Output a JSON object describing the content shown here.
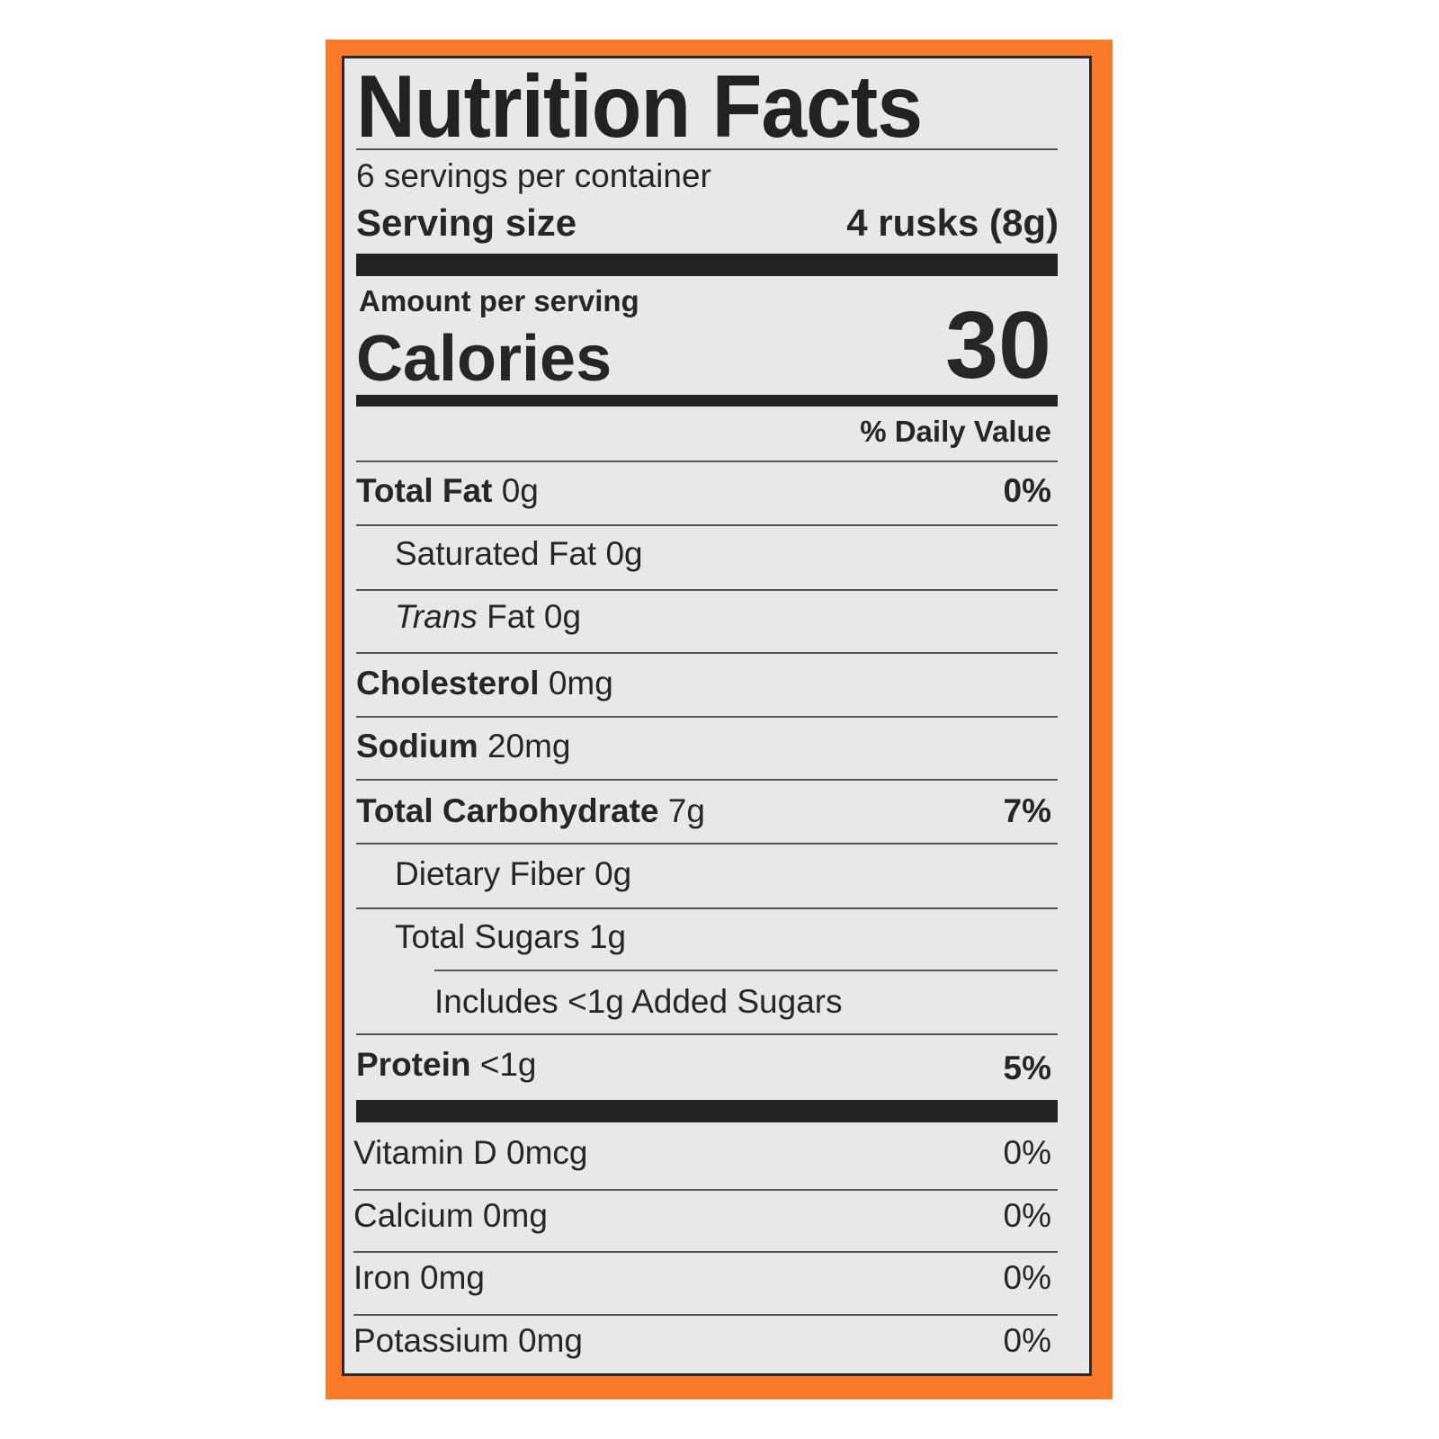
{
  "title": "Nutrition Facts",
  "servings_per_container": "6 servings per container",
  "serving_size_label": "Serving size",
  "serving_size_value": "4 rusks (8g)",
  "amount_per_serving": "Amount per serving",
  "calories_label": "Calories",
  "calories_value": "30",
  "daily_value_header": "% Daily Value",
  "colors": {
    "border": "#f97a2a",
    "panel": "#e7e8ea",
    "text": "#262626"
  },
  "nutrients": [
    {
      "label": "Total Fat",
      "amount": "0g",
      "dv": "0%",
      "bold": true,
      "indent": 0
    },
    {
      "label": "Saturated Fat",
      "amount": "0g",
      "dv": "",
      "bold": false,
      "indent": 1
    },
    {
      "label": "Trans",
      "label_suffix": "Fat",
      "amount": "0g",
      "dv": "",
      "bold": false,
      "italic": true,
      "indent": 1
    },
    {
      "label": "Cholesterol",
      "amount": "0mg",
      "dv": "",
      "bold": true,
      "indent": 0
    },
    {
      "label": "Sodium",
      "amount": "20mg",
      "dv": "",
      "bold": true,
      "indent": 0
    },
    {
      "label": "Total Carbohydrate",
      "amount": "7g",
      "dv": "7%",
      "bold": true,
      "indent": 0
    },
    {
      "label": "Dietary Fiber",
      "amount": "0g",
      "dv": "",
      "bold": false,
      "indent": 1
    },
    {
      "label": "Total Sugars",
      "amount": "1g",
      "dv": "",
      "bold": false,
      "indent": 1
    },
    {
      "label": "Includes <1g Added Sugars",
      "amount": "",
      "dv": "",
      "bold": false,
      "indent": 2
    },
    {
      "label": "Protein",
      "amount": "<1g",
      "dv": "5%",
      "bold": true,
      "indent": 0
    }
  ],
  "vitamins": [
    {
      "label": "Vitamin D 0mcg",
      "dv": "0%"
    },
    {
      "label": "Calcium 0mg",
      "dv": "0%"
    },
    {
      "label": "Iron 0mg",
      "dv": "0%"
    },
    {
      "label": "Potassium 0mg",
      "dv": "0%"
    }
  ]
}
